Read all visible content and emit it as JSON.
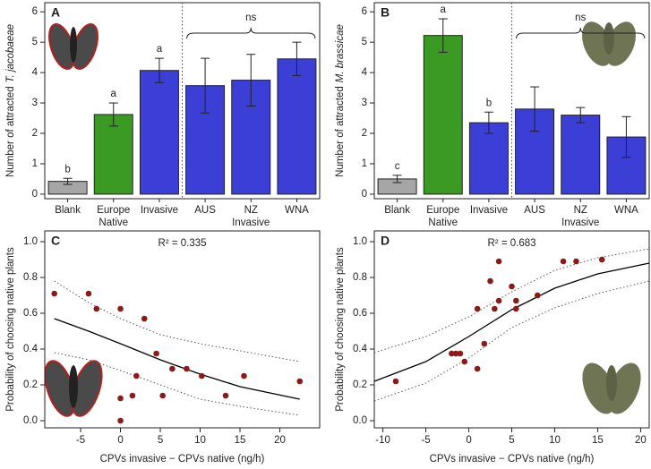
{
  "chart_data": [
    {
      "type": "bar",
      "panel": "A",
      "ylabel": "Number of attracted",
      "ylabel_species": "T. jacobaeae",
      "categories": [
        "Blank",
        "Europe\nNative",
        "Invasive",
        "AUS",
        "NZ",
        "WNA"
      ],
      "values": [
        0.42,
        2.62,
        4.07,
        3.57,
        3.75,
        4.45
      ],
      "errors": [
        0.1,
        0.38,
        0.4,
        0.9,
        0.85,
        0.55
      ],
      "colors": [
        "#a6a6a6",
        "#3a9a23",
        "#3b3fd6",
        "#3b3fd6",
        "#3b3fd6",
        "#3b3fd6"
      ],
      "letters": [
        "b",
        "a",
        "a",
        null,
        null,
        null
      ],
      "group_label": "Invasive",
      "bracket_label": "ns",
      "ylim": [
        -0.15,
        6.3
      ],
      "yticks": [
        0,
        1,
        2,
        3,
        4,
        5,
        6
      ]
    },
    {
      "type": "bar",
      "panel": "B",
      "ylabel": "Number of attracted",
      "ylabel_species": "M. brassicae",
      "categories": [
        "Blank",
        "Europe\nNative",
        "Invasive",
        "AUS",
        "NZ",
        "WNA"
      ],
      "values": [
        0.5,
        5.22,
        2.35,
        2.8,
        2.6,
        1.88
      ],
      "errors": [
        0.12,
        0.55,
        0.35,
        0.73,
        0.25,
        0.67
      ],
      "colors": [
        "#a6a6a6",
        "#3a9a23",
        "#3b3fd6",
        "#3b3fd6",
        "#3b3fd6",
        "#3b3fd6"
      ],
      "letters": [
        "c",
        "a",
        "b",
        null,
        null,
        null
      ],
      "group_label": "Invasive",
      "bracket_label": "ns",
      "ylim": [
        -0.15,
        6.3
      ],
      "yticks": [
        0,
        1,
        2,
        3,
        4,
        5,
        6
      ]
    },
    {
      "type": "scatter",
      "panel": "C",
      "annotation": "R² = 0.335",
      "xlabel": "CPVs invasive − CPVs native (ng/h)",
      "ylabel": "Probability of choosing native plants",
      "points": {
        "color": "#8b1a1a",
        "x": [
          -8.3,
          -4,
          -3,
          0,
          3,
          0,
          1.5,
          2,
          0,
          4.5,
          5.3,
          6.5,
          8.3,
          10.2,
          13.2,
          15.5,
          22.5
        ],
        "values": [
          0.71,
          0.71,
          0.625,
          0.625,
          0.57,
          0.125,
          0.14,
          0.25,
          0,
          0.375,
          0.14,
          0.29,
          0.29,
          0.25,
          0.14,
          0.25,
          0.22
        ]
      },
      "fit": {
        "color": "#000000",
        "x": [
          -8.3,
          -4,
          0,
          5,
          10,
          15,
          22.5
        ],
        "values": [
          0.57,
          0.5,
          0.43,
          0.34,
          0.26,
          0.19,
          0.12
        ]
      },
      "ci_upper": {
        "color": "#555555",
        "x": [
          -8.3,
          -4,
          0,
          5,
          10,
          15,
          22.5
        ],
        "values": [
          0.78,
          0.66,
          0.57,
          0.48,
          0.43,
          0.39,
          0.33
        ]
      },
      "ci_lower": {
        "color": "#555555",
        "x": [
          -8.3,
          -4,
          0,
          5,
          10,
          15,
          22.5
        ],
        "values": [
          0.38,
          0.34,
          0.28,
          0.2,
          0.12,
          0.08,
          0.03
        ]
      },
      "xlim": [
        -9.5,
        25
      ],
      "xticks": [
        -5,
        0,
        5,
        10,
        15,
        20
      ],
      "ylim": [
        -0.04,
        1.06
      ],
      "yticks": [
        {
          "value": 0,
          "label": "0.0"
        },
        0.2,
        0.4,
        0.6,
        0.8,
        {
          "value": 1,
          "label": "1.0"
        }
      ]
    },
    {
      "type": "scatter",
      "panel": "D",
      "annotation": "R² = 0.683",
      "xlabel": "CPVs invasive − CPVs native (ng/h)",
      "ylabel": "Probability of choosing native plants",
      "points": {
        "color": "#8b1a1a",
        "x": [
          -8.5,
          -2,
          -1.5,
          -1,
          -0.5,
          1,
          1,
          1.8,
          2.5,
          3,
          3.5,
          3.5,
          5,
          5.5,
          5.5,
          8,
          11,
          12.5,
          15.5
        ],
        "values": [
          0.22,
          0.375,
          0.375,
          0.375,
          0.33,
          0.29,
          0.625,
          0.43,
          0.78,
          0.625,
          0.89,
          0.67,
          0.75,
          0.67,
          0.625,
          0.7,
          0.89,
          0.89,
          0.9
        ]
      },
      "fit": {
        "color": "#000000",
        "x": [
          -11,
          -5,
          0,
          5,
          10,
          15,
          21
        ],
        "values": [
          0.22,
          0.33,
          0.47,
          0.62,
          0.74,
          0.82,
          0.88
        ]
      },
      "ci_upper": {
        "color": "#555555",
        "x": [
          -11,
          -5,
          0,
          5,
          10,
          15,
          21
        ],
        "values": [
          0.38,
          0.47,
          0.58,
          0.72,
          0.84,
          0.91,
          0.96
        ]
      },
      "ci_lower": {
        "color": "#555555",
        "x": [
          -11,
          -5,
          0,
          5,
          10,
          15,
          21
        ],
        "values": [
          0.11,
          0.21,
          0.35,
          0.52,
          0.63,
          0.71,
          0.78
        ]
      },
      "xlim": [
        -11,
        21
      ],
      "xticks": [
        -10,
        -5,
        0,
        5,
        10,
        15,
        20
      ],
      "ylim": [
        -0.04,
        1.06
      ],
      "yticks": [
        {
          "value": 0,
          "label": "0.0"
        },
        0.2,
        0.4,
        0.6,
        0.8,
        {
          "value": 1,
          "label": "1.0"
        }
      ]
    }
  ]
}
